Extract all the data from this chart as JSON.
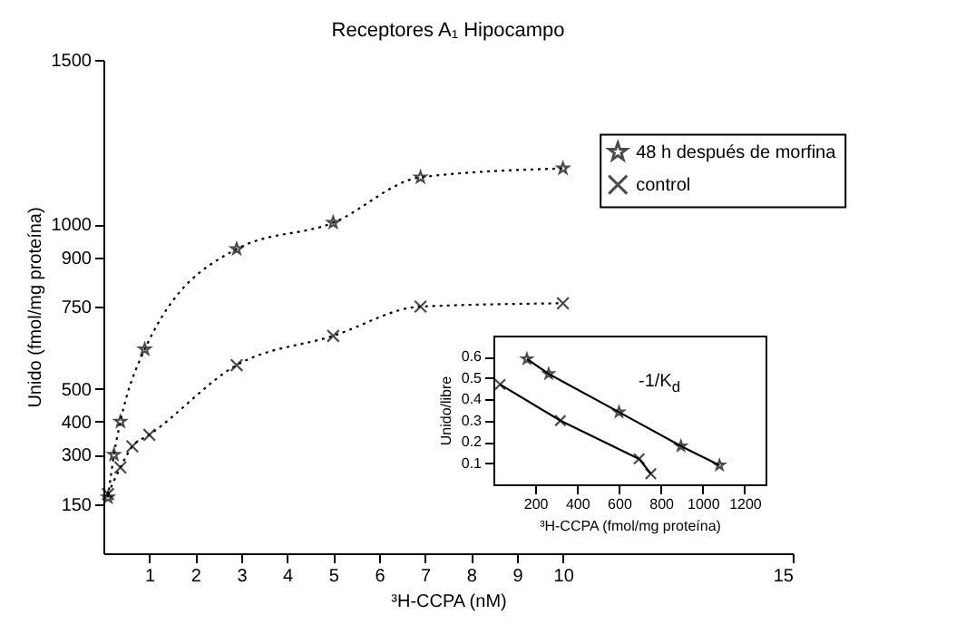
{
  "chart_data": [
    {
      "type": "line",
      "title": "Receptores A₁   Hipocampo",
      "xlabel": "³H-CCPA (nM)",
      "ylabel": "Unido (fmol/mg proteína)",
      "xlim": [
        0,
        15
      ],
      "xticks": [
        1,
        2,
        3,
        4,
        5,
        6,
        7,
        8,
        9,
        10,
        15
      ],
      "ylim": [
        0,
        1500
      ],
      "yticks": [
        150,
        300,
        400,
        500,
        750,
        900,
        1000,
        1500
      ],
      "legend": "top right",
      "line_style": "dotted",
      "series": [
        {
          "name": "48 h después de morfina",
          "color": "#000000",
          "marker": "star",
          "x": [
            0.1,
            0.23,
            0.37,
            0.9,
            2.9,
            5,
            6.9,
            10
          ],
          "values": [
            170,
            300,
            400,
            620,
            925,
            1005,
            1143,
            1170
          ]
        },
        {
          "name": "control",
          "color": "#000000",
          "marker": "cross",
          "x": [
            0.1,
            0.37,
            0.63,
            1.0,
            2.9,
            5,
            6.9,
            10
          ],
          "values": [
            180,
            261,
            325,
            360,
            572,
            661,
            750,
            760
          ]
        }
      ]
    },
    {
      "type": "line",
      "xlabel": "³H-CCPA (fmol/mg proteína)",
      "ylabel": "Unido/libre",
      "annotations": [
        "-1/K$_{d}$"
      ],
      "xlim": [
        0,
        1300
      ],
      "xticks": [
        200,
        400,
        600,
        800,
        1000,
        1200
      ],
      "ylim": [
        0,
        0.7
      ],
      "yticks": [
        0.1,
        0.2,
        0.3,
        0.4,
        0.5,
        0.6
      ],
      "line_style": "solid",
      "series": [
        {
          "color": "#000000",
          "marker": "star",
          "x": [
            160,
            264,
            600,
            896,
            1080
          ],
          "values": [
            0.59,
            0.52,
            0.34,
            0.18,
            0.09
          ]
        },
        {
          "color": "#000000",
          "marker": "cross",
          "x": [
            32,
            320,
            696,
            752
          ],
          "values": [
            0.47,
            0.3,
            0.12,
            0.05
          ]
        }
      ]
    }
  ]
}
